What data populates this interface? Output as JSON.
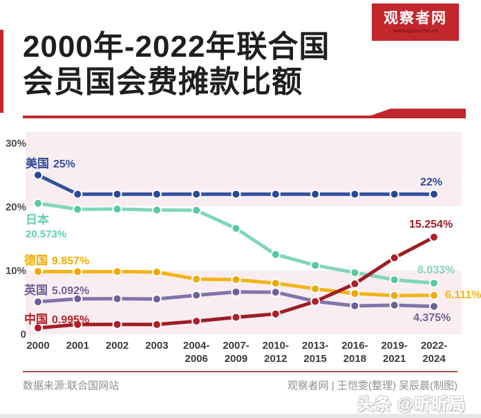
{
  "header": {
    "title_line1": "2000年-2022年联合国",
    "title_line2": "会员国会费摊款比额",
    "logo": {
      "name": "观察者网",
      "url": "www.guancha.cn"
    },
    "brand_color": "#c1272d"
  },
  "chart_data": {
    "type": "line",
    "title": "2000年-2022年联合国会员国会费摊款比额",
    "categories": [
      "2000",
      "2001",
      "2002",
      "2003",
      "2004-2006",
      "2007-2009",
      "2010-2012",
      "2013-2015",
      "2016-2018",
      "2019-2021",
      "2022-2024"
    ],
    "series": [
      {
        "name": "美国",
        "color": "#33519f",
        "dot_color": "#2b4896",
        "start_label": "25%",
        "end_label": "22%",
        "values": [
          25,
          22,
          22,
          22,
          22,
          22,
          22,
          22,
          22,
          22,
          22
        ]
      },
      {
        "name": "日本",
        "color": "#7fd6b8",
        "dot_color": "#56c9a4",
        "start_label": "20.573%",
        "end_label": "8.033%",
        "values": [
          20.573,
          19.629,
          19.669,
          19.516,
          19.468,
          16.624,
          12.53,
          10.833,
          9.68,
          8.564,
          8.033
        ]
      },
      {
        "name": "德国",
        "color": "#f2b416",
        "dot_color": "#eda907",
        "start_label": "9.857%",
        "end_label": "6.111%",
        "values": [
          9.857,
          9.825,
          9.845,
          9.769,
          8.662,
          8.577,
          8.018,
          7.141,
          6.389,
          6.09,
          6.111
        ]
      },
      {
        "name": "英国",
        "color": "#8174ab",
        "dot_color": "#6e6198",
        "start_label": "5.092%",
        "end_label": "4.375%",
        "values": [
          5.092,
          5.568,
          5.579,
          5.536,
          6.127,
          6.642,
          6.604,
          5.179,
          4.463,
          4.567,
          4.375
        ]
      },
      {
        "name": "中国",
        "color": "#9e1d24",
        "dot_color": "#ae1f29",
        "start_label": "0.995%",
        "end_label": "15.254%",
        "values": [
          0.995,
          1.541,
          1.545,
          1.532,
          2.053,
          2.667,
          3.189,
          5.148,
          7.921,
          12.005,
          15.254
        ]
      }
    ],
    "y_ticks": {
      "t30": "30%",
      "t20": "20%",
      "t10": "10%",
      "t0": "0"
    },
    "y_tick_values": [
      30,
      20,
      10,
      0
    ],
    "ylim": [
      0,
      31.5
    ],
    "grid": false,
    "legend_position": "inline-left",
    "band_color": "#f9edf1"
  },
  "footer": {
    "source": "数据来源:联合国网站",
    "credits": "观察者网 | 王恺雯(整理) 吴辰晨(制图)",
    "watermark": "头条 @昕昕局"
  }
}
